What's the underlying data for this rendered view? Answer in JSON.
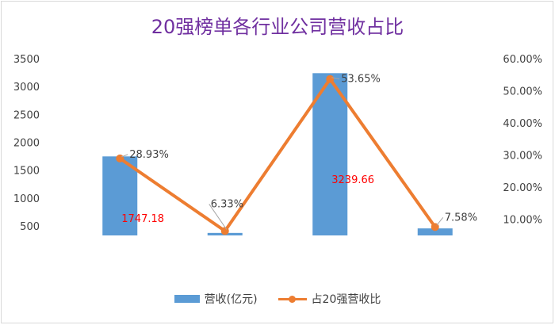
{
  "chart_data": {
    "type": "bar+line",
    "title": "20强榜单各行业公司营收占比",
    "categories": [
      "",
      "",
      "",
      ""
    ],
    "series": [
      {
        "name": "营收(亿元)",
        "type": "bar",
        "axis": "left",
        "color": "#5b9bd5",
        "values": [
          1747.18,
          375,
          3239.66,
          456
        ]
      },
      {
        "name": "占20强营收比",
        "type": "line",
        "axis": "right",
        "color": "#ed7d31",
        "values": [
          28.93,
          6.33,
          53.65,
          7.58
        ],
        "labels": [
          "28.93%",
          "6.33%",
          "53.65%",
          "7.58%"
        ]
      }
    ],
    "bar_value_labels": [
      "1747.18",
      "",
      "3239.66",
      ""
    ],
    "left_axis": {
      "ticks": [
        "500",
        "1000",
        "1500",
        "2000",
        "2500",
        "3000",
        "3500"
      ],
      "ylim": [
        330,
        3500
      ]
    },
    "right_axis": {
      "ticks": [
        "10.00%",
        "20.00%",
        "30.00%",
        "40.00%",
        "50.00%",
        "60.00%"
      ],
      "ylim": [
        4.95,
        60
      ]
    },
    "legend_position": "bottom",
    "grid": false
  }
}
